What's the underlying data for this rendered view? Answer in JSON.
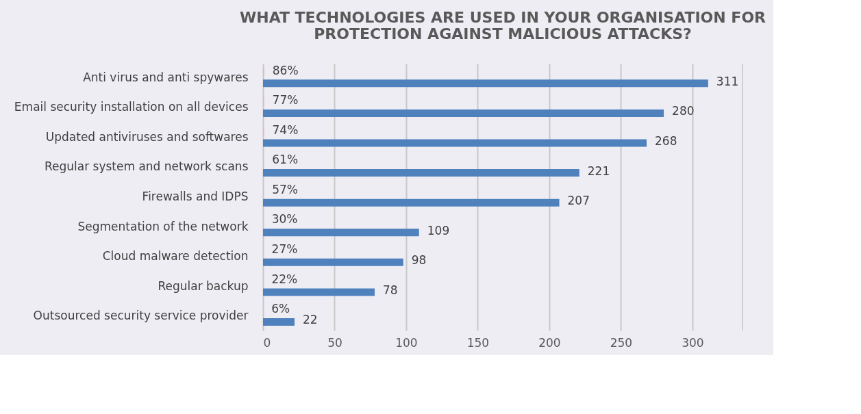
{
  "chart_data": {
    "type": "bar",
    "orientation": "horizontal",
    "title": [
      "WHAT TECHNOLOGIES ARE USED IN YOUR ORGANISATION FOR",
      "PROTECTION AGAINST MALICIOUS ATTACKS?"
    ],
    "categories": [
      "Anti virus and anti spywares",
      "Email security installation on all devices",
      "Updated antiviruses and softwares",
      "Regular system and network scans",
      "Firewalls and IDPS",
      "Segmentation of the network",
      "Cloud malware detection",
      "Regular backup",
      "Outsourced security service provider"
    ],
    "series": [
      {
        "color": "#e6b9b8",
        "values": [
          0.86,
          0.77,
          0.74,
          0.61,
          0.57,
          0.3,
          0.27,
          0.22,
          0.06
        ],
        "value_labels": [
          "86%",
          "77%",
          "74%",
          "61%",
          "57%",
          "30%",
          "27%",
          "22%",
          "6%"
        ]
      },
      {
        "color": "#4f81bd",
        "values": [
          311,
          280,
          268,
          221,
          207,
          109,
          98,
          78,
          22
        ],
        "value_labels": [
          "311",
          "280",
          "268",
          "221",
          "207",
          "109",
          "98",
          "78",
          "22"
        ]
      }
    ],
    "xlim": [
      0,
      335
    ],
    "xticks": [
      0,
      50,
      100,
      150,
      200,
      250,
      300
    ],
    "grid": "x",
    "legend": false
  }
}
